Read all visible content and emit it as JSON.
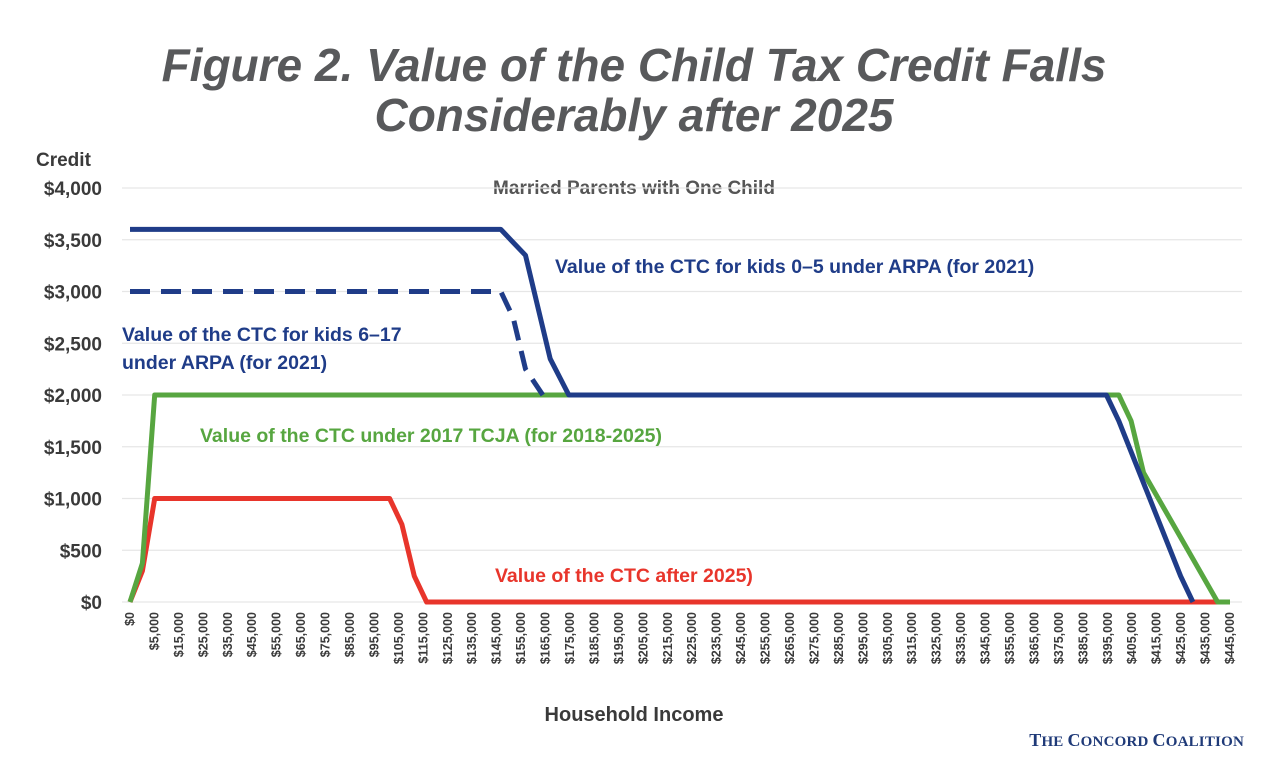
{
  "title_line1": "Figure 2. Value of the Child Tax Credit Falls",
  "title_line2": "Considerably after 2025",
  "source": "The Concord Coalition",
  "colors": {
    "arpa_0_5": "#1f3c88",
    "arpa_6_17": "#1f3c88",
    "tcja": "#57a640",
    "after_2025": "#e8352b",
    "grid": "#e6e6e6",
    "text": "#3a3a3a"
  },
  "chart_data": {
    "type": "line",
    "title": "Married Parents with One Child",
    "xlabel": "Household Income",
    "ylabel": "Credit",
    "xlim": [
      0,
      445000
    ],
    "ylim": [
      0,
      4000
    ],
    "grid": "horizontal",
    "y_ticks": [
      {
        "value": 4000,
        "label": "$4,000"
      },
      {
        "value": 3500,
        "label": "$3,500"
      },
      {
        "value": 3000,
        "label": "$3,000"
      },
      {
        "value": 2500,
        "label": "$2,500"
      },
      {
        "value": 2000,
        "label": "$2,000"
      },
      {
        "value": 1500,
        "label": "$1,500"
      },
      {
        "value": 1000,
        "label": "$1,000"
      },
      {
        "value": 500,
        "label": "$500"
      },
      {
        "value": 0,
        "label": "$0"
      }
    ],
    "x_ticks": [
      "$0",
      "$5,000",
      "$15,000",
      "$25,000",
      "$35,000",
      "$45,000",
      "$55,000",
      "$65,000",
      "$75,000",
      "$85,000",
      "$95,000",
      "$105,000",
      "$115,000",
      "$125,000",
      "$135,000",
      "$145,000",
      "$155,000",
      "$165,000",
      "$175,000",
      "$185,000",
      "$195,000",
      "$205,000",
      "$215,000",
      "$225,000",
      "$235,000",
      "$245,000",
      "$255,000",
      "$265,000",
      "$275,000",
      "$285,000",
      "$295,000",
      "$305,000",
      "$315,000",
      "$325,000",
      "$335,000",
      "$345,000",
      "$355,000",
      "$365,000",
      "$375,000",
      "$385,000",
      "$395,000",
      "$405,000",
      "$415,000",
      "$425,000",
      "$435,000",
      "$445,000"
    ],
    "series": [
      {
        "name": "Value of the CTC for kids 0–5 under ARPA (for 2021)",
        "style": "solid",
        "x": [
          0,
          150000,
          160000,
          170000,
          177500,
          395000,
          400000,
          425000,
          430000
        ],
        "y": [
          3600,
          3600,
          3350,
          2350,
          2000,
          2000,
          1750,
          250,
          0
        ]
      },
      {
        "name": "Value of the CTC for kids 6–17 under ARPA (for 2021)",
        "style": "dashed",
        "x": [
          0,
          150000,
          155000,
          160000,
          167000
        ],
        "y": [
          3000,
          3000,
          2750,
          2250,
          2000
        ]
      },
      {
        "name": "Value of the CTC under 2017 TCJA (for 2018-2025)",
        "style": "solid",
        "x": [
          0,
          5000,
          10000,
          177500,
          400000,
          405000,
          410000,
          440000,
          445000
        ],
        "y": [
          0,
          375,
          2000,
          2000,
          2000,
          1750,
          1250,
          0,
          0
        ]
      },
      {
        "name": "Value of the CTC after 2025)",
        "style": "solid",
        "x": [
          0,
          5000,
          10000,
          105000,
          110000,
          115000,
          120000,
          445000
        ],
        "y": [
          0,
          300,
          1000,
          1000,
          750,
          250,
          0,
          0
        ]
      }
    ],
    "annotations": [
      "Value of the CTC for kids 0–5 under ARPA (for 2021)",
      "Value of the CTC for kids 6–17",
      "under ARPA (for 2021)",
      "Value of the CTC under 2017 TCJA (for 2018-2025)",
      "Value of the CTC after 2025)"
    ]
  }
}
